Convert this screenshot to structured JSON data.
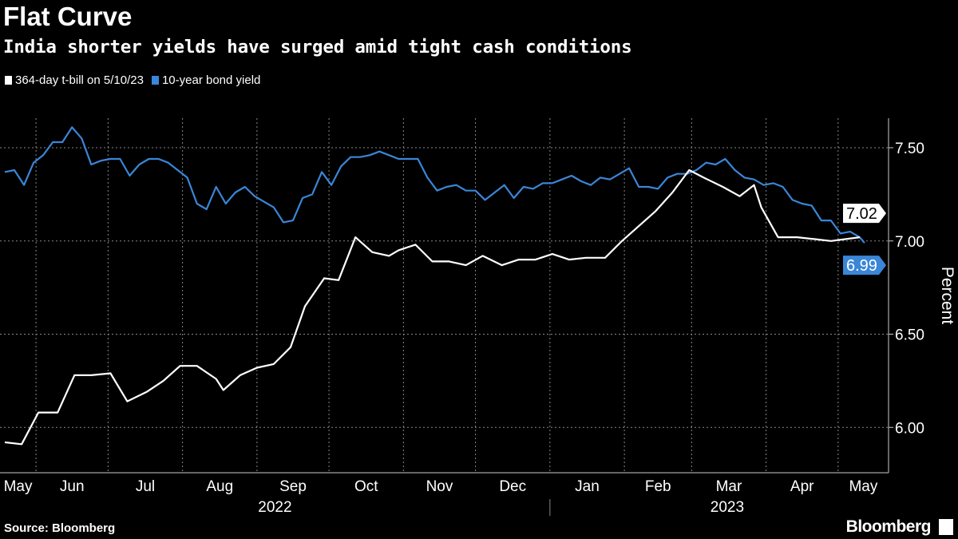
{
  "title": "Flat Curve",
  "subtitle": "India shorter yields have surged amid tight cash conditions",
  "source": "Source: Bloomberg",
  "logo": "Bloomberg",
  "chart_data": {
    "type": "line",
    "title": "Flat Curve",
    "subtitle": "India shorter yields have surged amid tight cash conditions",
    "ylabel": "Percent",
    "xlabel": "",
    "ylim": [
      5.75,
      7.78
    ],
    "xlim": [
      "2022-05-17",
      "2023-05-22"
    ],
    "yticks": [
      6.0,
      6.5,
      7.0,
      7.5
    ],
    "ytick_labels": [
      "6.00",
      "6.50",
      "7.00",
      "7.50"
    ],
    "xtick_labels": [
      "May",
      "Jun",
      "Jul",
      "Aug",
      "Sep",
      "Oct",
      "Nov",
      "Dec",
      "Jan",
      "Feb",
      "Mar",
      "Apr",
      "May"
    ],
    "xtick_months": [
      "2022-05",
      "2022-06",
      "2022-07",
      "2022-08",
      "2022-09",
      "2022-10",
      "2022-11",
      "2022-12",
      "2023-01",
      "2023-02",
      "2023-03",
      "2023-04",
      "2023-05"
    ],
    "year_labels": [
      "2022",
      "2023"
    ],
    "grid": true,
    "legend_placement": "top-left",
    "y_axis_side": "right",
    "series": [
      {
        "name": "364-day t-bill on 5/10/23",
        "color": "#ffffff",
        "last_label": "7.02",
        "points": [
          [
            "2022-05-19",
            5.92
          ],
          [
            "2022-05-26",
            5.91
          ],
          [
            "2022-06-02",
            6.08
          ],
          [
            "2022-06-10",
            6.08
          ],
          [
            "2022-06-17",
            6.28
          ],
          [
            "2022-06-24",
            6.28
          ],
          [
            "2022-07-02",
            6.29
          ],
          [
            "2022-07-09",
            6.14
          ],
          [
            "2022-07-17",
            6.19
          ],
          [
            "2022-07-24",
            6.25
          ],
          [
            "2022-07-31",
            6.33
          ],
          [
            "2022-08-07",
            6.33
          ],
          [
            "2022-08-15",
            6.26
          ],
          [
            "2022-08-18",
            6.2
          ],
          [
            "2022-08-25",
            6.28
          ],
          [
            "2022-09-01",
            6.32
          ],
          [
            "2022-09-08",
            6.34
          ],
          [
            "2022-09-15",
            6.43
          ],
          [
            "2022-09-21",
            6.65
          ],
          [
            "2022-09-29",
            6.8
          ],
          [
            "2022-10-05",
            6.79
          ],
          [
            "2022-10-12",
            7.02
          ],
          [
            "2022-10-19",
            6.94
          ],
          [
            "2022-10-26",
            6.92
          ],
          [
            "2022-10-30",
            6.95
          ],
          [
            "2022-11-06",
            6.98
          ],
          [
            "2022-11-13",
            6.89
          ],
          [
            "2022-11-20",
            6.89
          ],
          [
            "2022-11-27",
            6.87
          ],
          [
            "2022-12-04",
            6.92
          ],
          [
            "2022-12-12",
            6.87
          ],
          [
            "2022-12-19",
            6.9
          ],
          [
            "2022-12-26",
            6.9
          ],
          [
            "2023-01-02",
            6.93
          ],
          [
            "2023-01-09",
            6.9
          ],
          [
            "2023-01-16",
            6.91
          ],
          [
            "2023-01-24",
            6.91
          ],
          [
            "2023-01-31",
            7.0
          ],
          [
            "2023-02-07",
            7.08
          ],
          [
            "2023-02-14",
            7.16
          ],
          [
            "2023-02-21",
            7.26
          ],
          [
            "2023-02-28",
            7.38
          ],
          [
            "2023-03-06",
            7.34
          ],
          [
            "2023-03-14",
            7.29
          ],
          [
            "2023-03-21",
            7.24
          ],
          [
            "2023-03-27",
            7.3
          ],
          [
            "2023-03-30",
            7.18
          ],
          [
            "2023-04-06",
            7.02
          ],
          [
            "2023-04-14",
            7.02
          ],
          [
            "2023-04-21",
            7.01
          ],
          [
            "2023-04-28",
            7.0
          ],
          [
            "2023-05-10",
            7.02
          ]
        ]
      },
      {
        "name": "10-year bond yield",
        "color": "#3a86d8",
        "last_label": "6.99",
        "points": [
          [
            "2022-05-19",
            7.37
          ],
          [
            "2022-05-23",
            7.38
          ],
          [
            "2022-05-27",
            7.3
          ],
          [
            "2022-05-31",
            7.42
          ],
          [
            "2022-06-04",
            7.46
          ],
          [
            "2022-06-08",
            7.53
          ],
          [
            "2022-06-12",
            7.53
          ],
          [
            "2022-06-16",
            7.61
          ],
          [
            "2022-06-20",
            7.55
          ],
          [
            "2022-06-24",
            7.41
          ],
          [
            "2022-06-28",
            7.43
          ],
          [
            "2022-07-02",
            7.44
          ],
          [
            "2022-07-06",
            7.44
          ],
          [
            "2022-07-10",
            7.35
          ],
          [
            "2022-07-14",
            7.41
          ],
          [
            "2022-07-18",
            7.44
          ],
          [
            "2022-07-22",
            7.44
          ],
          [
            "2022-07-26",
            7.42
          ],
          [
            "2022-07-30",
            7.38
          ],
          [
            "2022-08-03",
            7.34
          ],
          [
            "2022-08-07",
            7.2
          ],
          [
            "2022-08-11",
            7.17
          ],
          [
            "2022-08-15",
            7.29
          ],
          [
            "2022-08-19",
            7.2
          ],
          [
            "2022-08-23",
            7.26
          ],
          [
            "2022-08-27",
            7.29
          ],
          [
            "2022-08-31",
            7.24
          ],
          [
            "2022-09-04",
            7.21
          ],
          [
            "2022-09-08",
            7.18
          ],
          [
            "2022-09-12",
            7.1
          ],
          [
            "2022-09-16",
            7.11
          ],
          [
            "2022-09-20",
            7.23
          ],
          [
            "2022-09-24",
            7.25
          ],
          [
            "2022-09-28",
            7.37
          ],
          [
            "2022-10-02",
            7.3
          ],
          [
            "2022-10-06",
            7.4
          ],
          [
            "2022-10-10",
            7.45
          ],
          [
            "2022-10-14",
            7.45
          ],
          [
            "2022-10-18",
            7.46
          ],
          [
            "2022-10-22",
            7.48
          ],
          [
            "2022-10-26",
            7.46
          ],
          [
            "2022-10-30",
            7.44
          ],
          [
            "2022-11-03",
            7.44
          ],
          [
            "2022-11-07",
            7.44
          ],
          [
            "2022-11-11",
            7.34
          ],
          [
            "2022-11-15",
            7.27
          ],
          [
            "2022-11-19",
            7.29
          ],
          [
            "2022-11-23",
            7.3
          ],
          [
            "2022-11-27",
            7.27
          ],
          [
            "2022-12-01",
            7.27
          ],
          [
            "2022-12-05",
            7.22
          ],
          [
            "2022-12-09",
            7.26
          ],
          [
            "2022-12-13",
            7.3
          ],
          [
            "2022-12-17",
            7.23
          ],
          [
            "2022-12-21",
            7.29
          ],
          [
            "2022-12-25",
            7.28
          ],
          [
            "2022-12-29",
            7.31
          ],
          [
            "2023-01-02",
            7.31
          ],
          [
            "2023-01-06",
            7.33
          ],
          [
            "2023-01-10",
            7.35
          ],
          [
            "2023-01-14",
            7.32
          ],
          [
            "2023-01-18",
            7.3
          ],
          [
            "2023-01-22",
            7.34
          ],
          [
            "2023-01-26",
            7.33
          ],
          [
            "2023-01-30",
            7.36
          ],
          [
            "2023-02-03",
            7.39
          ],
          [
            "2023-02-07",
            7.29
          ],
          [
            "2023-02-11",
            7.29
          ],
          [
            "2023-02-15",
            7.28
          ],
          [
            "2023-02-19",
            7.34
          ],
          [
            "2023-02-23",
            7.36
          ],
          [
            "2023-02-27",
            7.36
          ],
          [
            "2023-03-03",
            7.38
          ],
          [
            "2023-03-07",
            7.42
          ],
          [
            "2023-03-11",
            7.41
          ],
          [
            "2023-03-15",
            7.44
          ],
          [
            "2023-03-19",
            7.38
          ],
          [
            "2023-03-23",
            7.34
          ],
          [
            "2023-03-27",
            7.33
          ],
          [
            "2023-03-31",
            7.3
          ],
          [
            "2023-04-04",
            7.31
          ],
          [
            "2023-04-08",
            7.29
          ],
          [
            "2023-04-12",
            7.22
          ],
          [
            "2023-04-16",
            7.2
          ],
          [
            "2023-04-20",
            7.19
          ],
          [
            "2023-04-24",
            7.11
          ],
          [
            "2023-04-28",
            7.11
          ],
          [
            "2023-05-02",
            7.04
          ],
          [
            "2023-05-06",
            7.05
          ],
          [
            "2023-05-10",
            7.02
          ],
          [
            "2023-05-12",
            6.99
          ]
        ]
      }
    ]
  }
}
